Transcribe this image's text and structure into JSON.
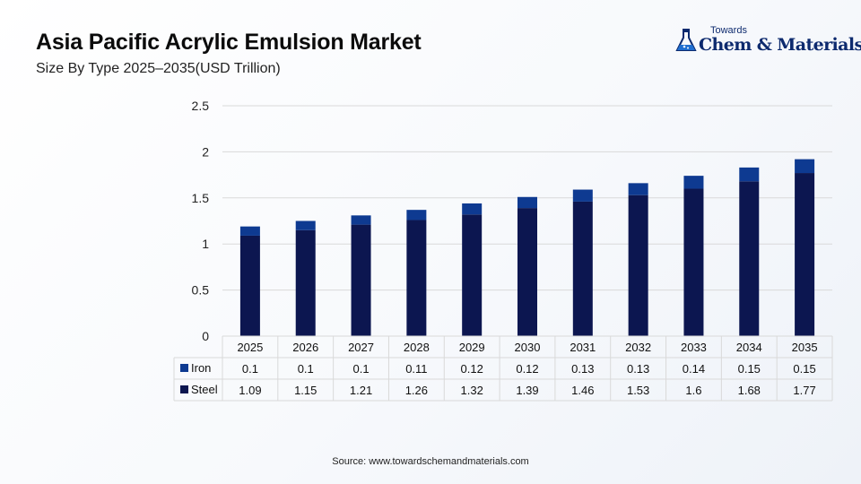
{
  "header": {
    "title": "Asia Pacific Acrylic Emulsion Market",
    "subtitle": "Size By Type 2025–2035(USD Trillion)"
  },
  "logo": {
    "small_text": "Towards",
    "big_text": "Chem & Materials",
    "icon": "flask-logo-icon"
  },
  "source": "Source: www.towardschemandmaterials.com",
  "colors": {
    "steel": "#0c1650",
    "iron": "#0e3a91",
    "grid": "#d9d9d9"
  },
  "chart_data": {
    "type": "bar",
    "stacked": true,
    "categories": [
      "2025",
      "2026",
      "2027",
      "2028",
      "2029",
      "2030",
      "2031",
      "2032",
      "2033",
      "2034",
      "2035"
    ],
    "series": [
      {
        "name": "Steel",
        "values": [
          1.09,
          1.15,
          1.21,
          1.26,
          1.32,
          1.39,
          1.46,
          1.53,
          1.6,
          1.68,
          1.77
        ]
      },
      {
        "name": "Iron",
        "values": [
          0.1,
          0.1,
          0.1,
          0.11,
          0.12,
          0.12,
          0.13,
          0.13,
          0.14,
          0.15,
          0.15
        ]
      }
    ],
    "y_ticks": [
      "0",
      "0.5",
      "1",
      "1.5",
      "2",
      "2.5"
    ],
    "ylim": [
      0,
      2.5
    ],
    "grid": true,
    "legend": "data table below chart",
    "data_table": true
  }
}
